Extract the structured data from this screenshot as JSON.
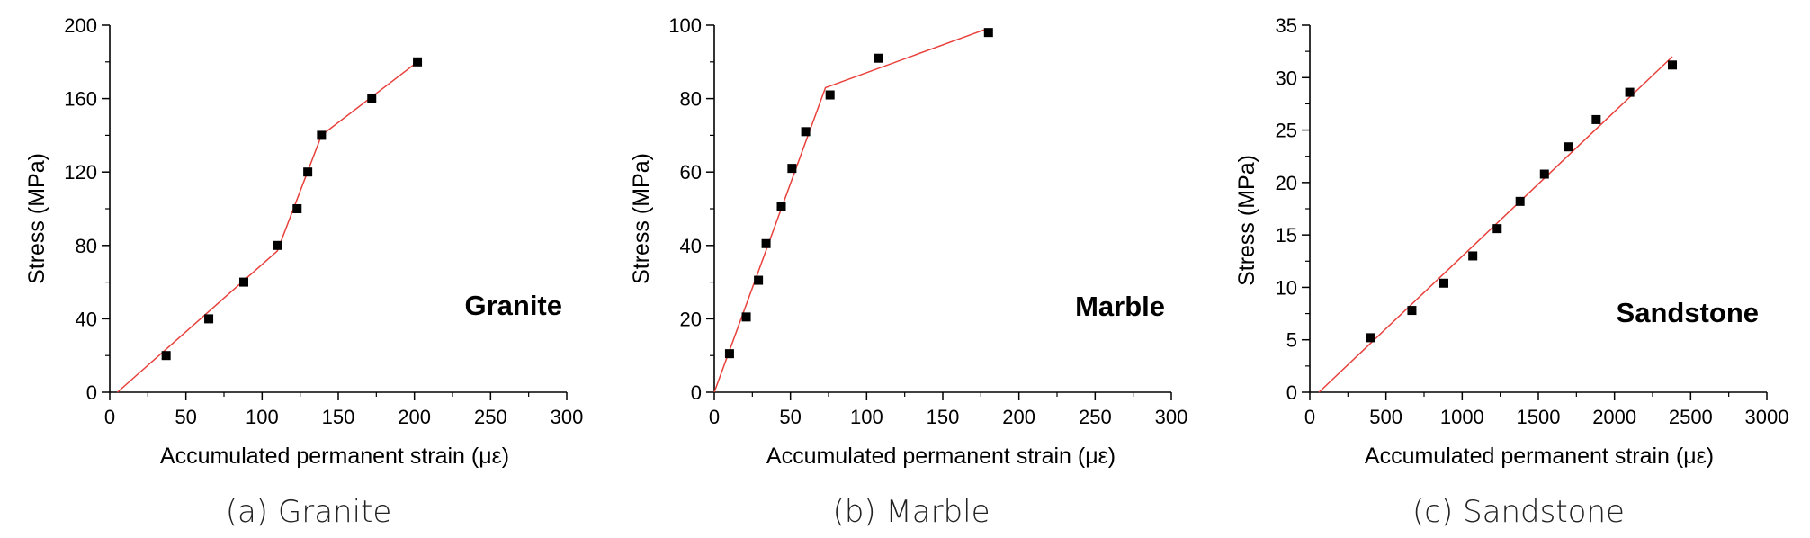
{
  "chart_data": [
    {
      "type": "scatter",
      "caption": "(a) Granite",
      "annotation": "Granite",
      "xlabel": "Accumulated permanent strain (με)",
      "ylabel": "Stress (MPa)",
      "xlim": [
        0,
        300
      ],
      "ylim": [
        0,
        200
      ],
      "xticks": [
        0,
        50,
        100,
        150,
        200,
        250,
        300
      ],
      "yticks": [
        0,
        40,
        80,
        120,
        160,
        200
      ],
      "grid": false,
      "points": [
        [
          37,
          20
        ],
        [
          65,
          40
        ],
        [
          88,
          60
        ],
        [
          110,
          80
        ],
        [
          123,
          100
        ],
        [
          130,
          120
        ],
        [
          139,
          140
        ],
        [
          172,
          160
        ],
        [
          202,
          180
        ]
      ],
      "fit_line": [
        [
          5,
          0
        ],
        [
          110,
          77
        ],
        [
          139,
          140
        ],
        [
          202,
          180
        ]
      ],
      "colors": {
        "points": "#000000",
        "fit_line": "#e8413c"
      }
    },
    {
      "type": "scatter",
      "caption": "(b) Marble",
      "annotation": "Marble",
      "xlabel": "Accumulated permanent strain (με)",
      "ylabel": "Stress (MPa)",
      "xlim": [
        0,
        300
      ],
      "ylim": [
        0,
        100
      ],
      "xticks": [
        0,
        50,
        100,
        150,
        200,
        250,
        300
      ],
      "yticks": [
        0,
        20,
        40,
        60,
        80,
        100
      ],
      "grid": false,
      "points": [
        [
          10,
          10.5
        ],
        [
          21,
          20.5
        ],
        [
          29,
          30.5
        ],
        [
          34,
          40.5
        ],
        [
          44,
          50.5
        ],
        [
          51,
          61
        ],
        [
          60,
          71
        ],
        [
          76,
          81
        ],
        [
          108,
          91
        ],
        [
          180,
          98
        ]
      ],
      "fit_line": [
        [
          0,
          0
        ],
        [
          73,
          83
        ],
        [
          179,
          99
        ]
      ],
      "colors": {
        "points": "#000000",
        "fit_line": "#e8413c"
      }
    },
    {
      "type": "scatter",
      "caption": "(c) Sandstone",
      "annotation": "Sandstone",
      "xlabel": "Accumulated permanent strain (με)",
      "ylabel": "Stress (MPa)",
      "xlim": [
        0,
        3000
      ],
      "ylim": [
        0,
        35
      ],
      "xticks": [
        0,
        500,
        1000,
        1500,
        2000,
        2500,
        3000
      ],
      "yticks": [
        0,
        5,
        10,
        15,
        20,
        25,
        30,
        35
      ],
      "grid": false,
      "points": [
        [
          400,
          5.2
        ],
        [
          670,
          7.8
        ],
        [
          880,
          10.4
        ],
        [
          1070,
          13
        ],
        [
          1230,
          15.6
        ],
        [
          1380,
          18.2
        ],
        [
          1540,
          20.8
        ],
        [
          1700,
          23.4
        ],
        [
          1880,
          26
        ],
        [
          2100,
          28.6
        ],
        [
          2380,
          31.2
        ]
      ],
      "fit_line": [
        [
          60,
          0
        ],
        [
          2380,
          32
        ]
      ],
      "colors": {
        "points": "#000000",
        "fit_line": "#e8413c"
      }
    }
  ]
}
